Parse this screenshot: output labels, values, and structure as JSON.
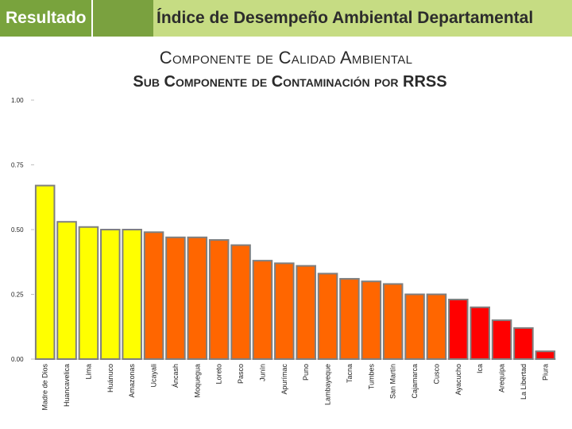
{
  "header": {
    "tab_label": "Resultado",
    "title": "Índice de Desempeño Ambiental Departamental"
  },
  "colors": {
    "header_dark": "#7aa13f",
    "header_light": "#c6dc83",
    "yellow": "#ffff00",
    "orange": "#ff6600",
    "red": "#ff0000",
    "bar_border": "#7f7f7f"
  },
  "chart_data": {
    "type": "bar",
    "title": "Componente de Calidad Ambiental",
    "subtitle": "Sub Componente de Contaminación por RRSS",
    "xlabel": "",
    "ylabel": "",
    "ylim": [
      0,
      1
    ],
    "yticks": [
      "0.00",
      "0.25",
      "0.50",
      "0.75",
      "1.00"
    ],
    "grid": false,
    "categories": [
      "Madre de Dios",
      "Huancavelica",
      "Lima",
      "Huánuco",
      "Amazonas",
      "Ucayali",
      "Áncash",
      "Moquegua",
      "Loreto",
      "Pasco",
      "Junín",
      "Apurímac",
      "Puno",
      "Lambayeque",
      "Tacna",
      "Tumbes",
      "San Martín",
      "Cajamarca",
      "Cusco",
      "Ayacucho",
      "Ica",
      "Arequipa",
      "La Libertad",
      "Piura"
    ],
    "values": [
      0.67,
      0.53,
      0.51,
      0.5,
      0.5,
      0.49,
      0.47,
      0.47,
      0.46,
      0.44,
      0.38,
      0.37,
      0.36,
      0.33,
      0.31,
      0.3,
      0.29,
      0.25,
      0.25,
      0.23,
      0.2,
      0.15,
      0.12,
      0.03
    ],
    "color_groups": [
      "yellow",
      "yellow",
      "yellow",
      "yellow",
      "yellow",
      "orange",
      "orange",
      "orange",
      "orange",
      "orange",
      "orange",
      "orange",
      "orange",
      "orange",
      "orange",
      "orange",
      "orange",
      "orange",
      "orange",
      "red",
      "red",
      "red",
      "red",
      "red"
    ]
  }
}
